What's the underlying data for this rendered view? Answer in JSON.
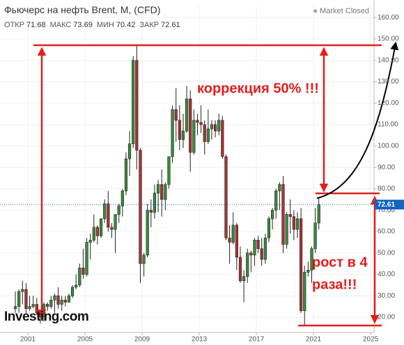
{
  "chart_data": {
    "type": "candlestick",
    "title": "Фьючерс на нефть Brent, M, (CFD)",
    "market_status": "Market Closed",
    "ohlc_header": [
      {
        "label": "ОТКР",
        "value": 71.68
      },
      {
        "label": "МАКС",
        "value": 73.69
      },
      {
        "label": "МИН",
        "value": 70.42
      },
      {
        "label": "ЗАКР",
        "value": 72.61
      }
    ],
    "last_price": {
      "value": 72.61,
      "label": "72.61"
    },
    "annotations": [
      "коррекция 50% !!!",
      "рост в 4",
      "раза!!!"
    ],
    "logo": "Investing.com",
    "up_color": "#3a8a3a",
    "down_color": "#a83232",
    "xlim": [
      1999.05,
      2025.24
    ],
    "xticks": [
      2001,
      2005,
      2009,
      2013,
      2017,
      2021,
      2025
    ],
    "ylim": [
      12.85,
      165.6
    ],
    "yticks": [
      {
        "value": 20,
        "label": "20.00"
      },
      {
        "value": 30,
        "label": "30.00"
      },
      {
        "value": 40,
        "label": "40.00"
      },
      {
        "value": 50,
        "label": "50.00"
      },
      {
        "value": 60,
        "label": "60.00"
      },
      {
        "value": 70,
        "label": "70.00"
      },
      {
        "value": 80,
        "label": "80.00"
      },
      {
        "value": 90,
        "label": "90.00"
      },
      {
        "value": 100,
        "label": "100.00"
      },
      {
        "value": 110,
        "label": "110.00"
      },
      {
        "value": 120,
        "label": "120.00"
      },
      {
        "value": 130,
        "label": "130.00"
      },
      {
        "value": 140,
        "label": "140.00"
      },
      {
        "value": 150,
        "label": "150.00"
      },
      {
        "value": 160,
        "label": "160.00"
      }
    ],
    "x": [
      2000.125,
      2000.375,
      2000.625,
      2000.875,
      2001.125,
      2001.375,
      2001.625,
      2001.875,
      2002.125,
      2002.375,
      2002.625,
      2002.875,
      2003.125,
      2003.375,
      2003.625,
      2003.875,
      2004.125,
      2004.375,
      2004.625,
      2004.875,
      2005.125,
      2005.375,
      2005.625,
      2005.875,
      2006.125,
      2006.375,
      2006.625,
      2006.875,
      2007.125,
      2007.375,
      2007.625,
      2007.875,
      2008.125,
      2008.375,
      2008.625,
      2008.875,
      2009.125,
      2009.375,
      2009.625,
      2009.875,
      2010.125,
      2010.375,
      2010.625,
      2010.875,
      2011.125,
      2011.375,
      2011.625,
      2011.875,
      2012.125,
      2012.375,
      2012.625,
      2012.875,
      2013.125,
      2013.375,
      2013.625,
      2013.875,
      2014.125,
      2014.375,
      2014.625,
      2014.875,
      2015.125,
      2015.375,
      2015.625,
      2015.875,
      2016.125,
      2016.375,
      2016.625,
      2016.875,
      2017.125,
      2017.375,
      2017.625,
      2017.875,
      2018.125,
      2018.375,
      2018.625,
      2018.875,
      2019.125,
      2019.375,
      2019.625,
      2019.875,
      2020.125,
      2020.375,
      2020.625,
      2020.875,
      2021.125,
      2021.375
    ],
    "open": [
      24,
      25,
      32,
      33,
      24,
      25,
      26,
      22,
      20,
      26,
      25,
      28,
      30,
      26,
      28,
      27,
      30,
      34,
      35,
      43,
      40,
      55,
      56,
      62,
      58,
      66,
      73,
      62,
      61,
      68,
      72,
      79,
      94,
      101,
      140,
      98,
      45,
      49,
      70,
      69,
      78,
      82,
      75,
      82,
      95,
      117,
      112,
      103,
      107,
      122,
      97,
      112,
      111,
      110,
      102,
      108,
      110,
      107,
      112,
      95,
      57,
      55,
      63,
      48,
      37,
      39,
      50,
      49,
      56,
      52,
      47,
      57,
      66,
      70,
      79,
      82,
      54,
      68,
      67,
      61,
      66,
      23,
      41,
      42,
      52,
      64
    ],
    "high": [
      32,
      33,
      37,
      36,
      30,
      30,
      29,
      23,
      27,
      27,
      30,
      31,
      34,
      30,
      30,
      31,
      35,
      40,
      45,
      52,
      57,
      59,
      68,
      63,
      65,
      75,
      79,
      64,
      68,
      73,
      80,
      97,
      107,
      142,
      147,
      99,
      50,
      73,
      75,
      82,
      84,
      89,
      83,
      95,
      119,
      127,
      119,
      115,
      128,
      126,
      117,
      115,
      119,
      112,
      117,
      112,
      112,
      115,
      114,
      96,
      63,
      69,
      64,
      53,
      42,
      52,
      51,
      57,
      58,
      57,
      59,
      67,
      71,
      80,
      83,
      86,
      69,
      75,
      70,
      69,
      71,
      44,
      46,
      53,
      71,
      76
    ],
    "low": [
      22,
      22,
      26,
      22,
      23,
      24,
      21,
      17,
      18,
      23,
      24,
      22,
      24,
      23,
      25,
      27,
      29,
      33,
      34,
      38,
      39,
      47,
      55,
      54,
      57,
      64,
      60,
      57,
      50,
      64,
      67,
      77,
      86,
      99,
      89,
      36,
      39,
      48,
      62,
      66,
      69,
      67,
      70,
      80,
      92,
      102,
      98,
      99,
      106,
      88,
      96,
      105,
      106,
      96,
      101,
      103,
      104,
      105,
      94,
      56,
      45,
      54,
      42,
      36,
      27,
      36,
      41,
      44,
      50,
      44,
      45,
      55,
      61,
      66,
      70,
      50,
      52,
      59,
      56,
      57,
      22,
      16,
      39,
      36,
      50,
      61
    ],
    "close": [
      25,
      32,
      33,
      24,
      25,
      26,
      22,
      20,
      26,
      25,
      28,
      30,
      26,
      28,
      27,
      30,
      34,
      35,
      43,
      40,
      55,
      56,
      62,
      58,
      66,
      73,
      62,
      61,
      68,
      72,
      79,
      94,
      101,
      140,
      98,
      45,
      49,
      70,
      69,
      78,
      82,
      75,
      82,
      95,
      117,
      112,
      103,
      107,
      122,
      97,
      112,
      111,
      110,
      102,
      108,
      110,
      107,
      112,
      95,
      57,
      55,
      63,
      48,
      37,
      39,
      50,
      49,
      56,
      52,
      47,
      57,
      66,
      70,
      79,
      82,
      54,
      68,
      67,
      61,
      66,
      23,
      41,
      42,
      52,
      64,
      72.61
    ]
  }
}
